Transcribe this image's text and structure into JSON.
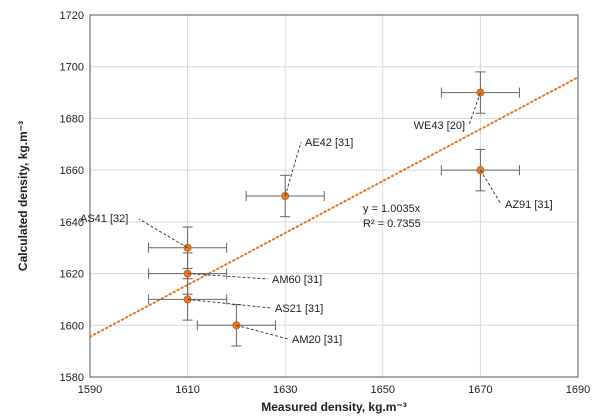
{
  "chart_data": {
    "type": "scatter",
    "title": "",
    "xlabel": "Measured density, kg.m⁻³",
    "ylabel": "Calculated density, kg.m⁻³",
    "xlim": [
      1590,
      1690
    ],
    "ylim": [
      1580,
      1720
    ],
    "x_ticks": [
      "1590",
      "1610",
      "1630",
      "1650",
      "1670",
      "1690"
    ],
    "y_ticks": [
      "1580",
      "1600",
      "1620",
      "1640",
      "1660",
      "1680",
      "1700",
      "1720"
    ],
    "grid": true,
    "legend": "none",
    "marker_color": "#E87722",
    "error_bar_color": "#666666",
    "points": [
      {
        "label": "AS41 [32]",
        "x": 1610,
        "y": 1630,
        "xerr": 8,
        "yerr": 8
      },
      {
        "label": "AM60 [31]",
        "x": 1610,
        "y": 1620,
        "xerr": 8,
        "yerr": 8
      },
      {
        "label": "AS21 [31]",
        "x": 1610,
        "y": 1610,
        "xerr": 8,
        "yerr": 8
      },
      {
        "label": "AM20 [31]",
        "x": 1620,
        "y": 1600,
        "xerr": 8,
        "yerr": 8
      },
      {
        "label": "AE42 [31]",
        "x": 1630,
        "y": 1650,
        "xerr": 8,
        "yerr": 8
      },
      {
        "label": "WE43 [20]",
        "x": 1670,
        "y": 1690,
        "xerr": 8,
        "yerr": 8
      },
      {
        "label": "AZ91 [31]",
        "x": 1670,
        "y": 1660,
        "xerr": 8,
        "yerr": 8
      }
    ],
    "trendline": {
      "type": "linear",
      "slope": 1.0035,
      "equation": "y = 1.0035x",
      "r_squared": "R² = 0.7355",
      "color": "#E87722",
      "style": "dotted"
    }
  }
}
